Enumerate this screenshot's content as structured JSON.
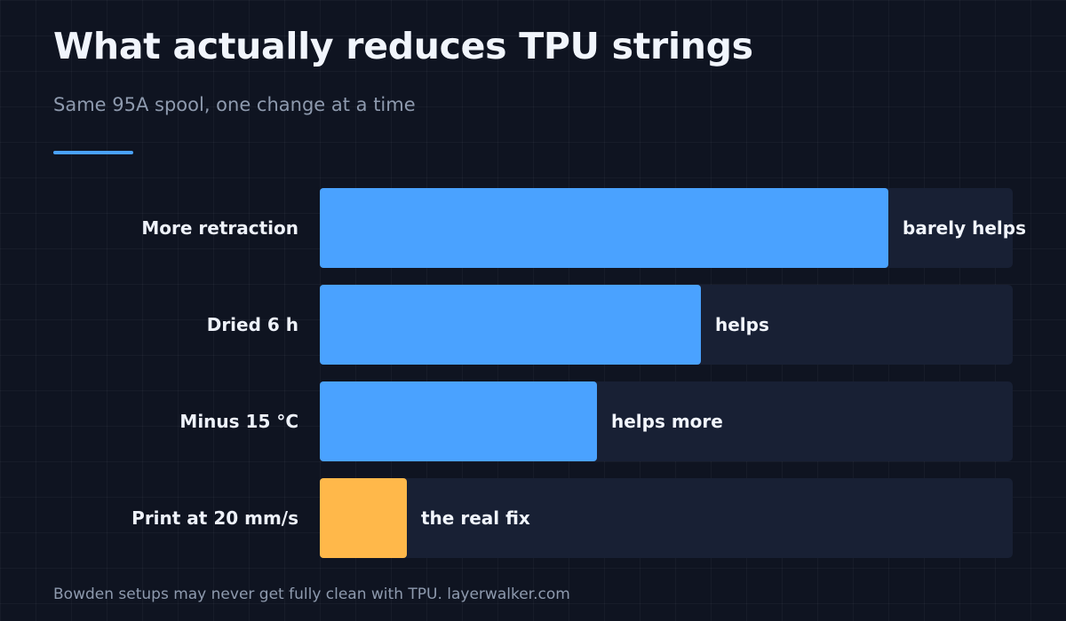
{
  "title": "What actually reduces TPU strings",
  "subtitle": "Same 95A spool, one change at a time",
  "footer": "Bowden setups may never get fully clean with TPU. layerwalker.com",
  "colors": {
    "background": "#0f1421",
    "track": "#182034",
    "bar_default": "#4aa2ff",
    "bar_highlight": "#ffb84a",
    "accent_rule": "#4aa2ff"
  },
  "chart_data": {
    "type": "bar",
    "orientation": "horizontal",
    "title": "What actually reduces TPU strings",
    "subtitle": "Same 95A spool, one change at a time",
    "categories": [
      "More retraction",
      "Dried 6 h",
      "Minus 15 °C",
      "Print at 20 mm/s"
    ],
    "values": [
      82,
      55,
      40,
      12.5
    ],
    "value_labels": [
      "barely helps",
      "helps",
      "helps more",
      "the real fix"
    ],
    "bar_colors": [
      "#4aa2ff",
      "#4aa2ff",
      "#4aa2ff",
      "#ffb84a"
    ],
    "xlim": [
      0,
      100
    ],
    "xlabel": "",
    "ylabel": "",
    "grid": false,
    "legend": "none"
  }
}
